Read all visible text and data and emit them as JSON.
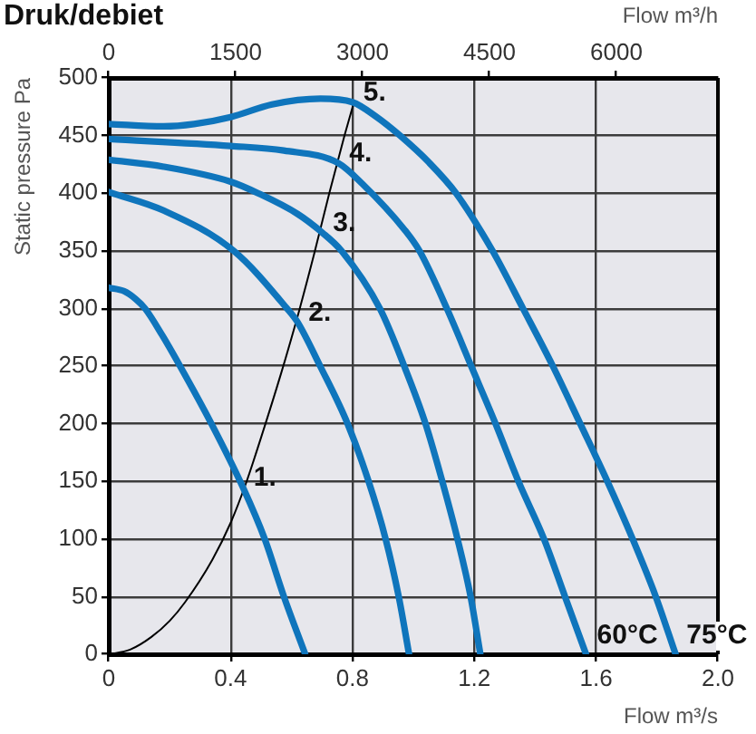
{
  "chart_data": {
    "type": "line",
    "title": "Druk/debiet",
    "xlabel": "Flow m³/s",
    "ylabel": "Static pressure Pa",
    "x2label": "Flow m³/h",
    "xlim": [
      0,
      2
    ],
    "xticks": [
      0,
      0.4,
      0.8,
      1.2,
      1.6,
      {
        "value": 2,
        "label": "2.0"
      }
    ],
    "x2lim": [
      0,
      7200
    ],
    "x2ticks": [
      0,
      1500,
      3000,
      4500,
      6000
    ],
    "ylim": [
      0,
      500
    ],
    "yticks": [
      0,
      50,
      100,
      150,
      200,
      250,
      300,
      350,
      400,
      450,
      500
    ],
    "grid": true,
    "marker": "none",
    "line_style": "solid",
    "series": [
      {
        "color": "#0f75bc",
        "x": [
          0,
          0.05,
          0.089,
          0.119,
          0.175,
          0.234,
          0.337,
          0.44,
          0.512,
          0.575,
          0.645
        ],
        "values": [
          318,
          315,
          308,
          300,
          277,
          250,
          200,
          145,
          100,
          50,
          0
        ]
      },
      {
        "color": "#0f75bc",
        "x": [
          0,
          0.18,
          0.41,
          0.585,
          0.62,
          0.694,
          0.784,
          0.853,
          0.909,
          0.952,
          0.986
        ],
        "values": [
          401,
          385,
          350,
          300,
          288,
          250,
          200,
          150,
          100,
          50,
          0
        ]
      },
      {
        "color": "#0f75bc",
        "x": [
          0,
          0.18,
          0.4,
          0.49,
          0.62,
          0.7,
          0.764,
          0.89,
          0.97,
          1.04,
          1.095,
          1.145,
          1.188,
          1.22
        ],
        "values": [
          429,
          423,
          410,
          400,
          382,
          366,
          350,
          300,
          250,
          200,
          150,
          100,
          50,
          0
        ]
      },
      {
        "color": "#0f75bc",
        "x": [
          0,
          0.4,
          0.575,
          0.754,
          0.833,
          0.972,
          1.02,
          1.11,
          1.19,
          1.27,
          1.345,
          1.429,
          1.498,
          1.567
        ],
        "values": [
          447,
          441,
          437,
          426,
          408,
          368,
          350,
          300,
          250,
          200,
          150,
          100,
          50,
          0
        ]
      },
      {
        "color": "#0f75bc",
        "x": [
          0,
          0.18,
          0.28,
          0.4,
          0.536,
          0.695,
          0.8,
          0.88,
          0.956,
          1.05,
          1.14,
          1.26,
          1.36,
          1.458,
          1.548,
          1.637,
          1.72,
          1.796,
          1.861
        ],
        "values": [
          460,
          458,
          460,
          466,
          477,
          482,
          479,
          466,
          450,
          427,
          400,
          350,
          300,
          250,
          200,
          150,
          100,
          50,
          0
        ]
      },
      {
        "color": "#000000",
        "x": [
          0,
          0.07,
          0.14,
          0.2,
          0.25,
          0.34,
          0.4,
          0.45,
          0.5,
          0.565,
          0.625,
          0.675,
          0.724,
          0.774,
          0.805
        ],
        "values": [
          0,
          4,
          15,
          29,
          45,
          82,
          114,
          148,
          188,
          243,
          298,
          348,
          400,
          450,
          479
        ]
      }
    ],
    "annotations": [
      {
        "text": "1.",
        "x": 0.44,
        "y": 145
      },
      {
        "text": "2.",
        "x": 0.62,
        "y": 288
      },
      {
        "text": "3.",
        "x": 0.7,
        "y": 366
      },
      {
        "text": "4.",
        "x": 0.754,
        "y": 426
      },
      {
        "text": "5.",
        "x": 0.8,
        "y": 479
      },
      {
        "text": "60°C",
        "x": 1.567,
        "y": 0
      },
      {
        "text": "75°C",
        "x": 1.861,
        "y": 0
      }
    ]
  }
}
